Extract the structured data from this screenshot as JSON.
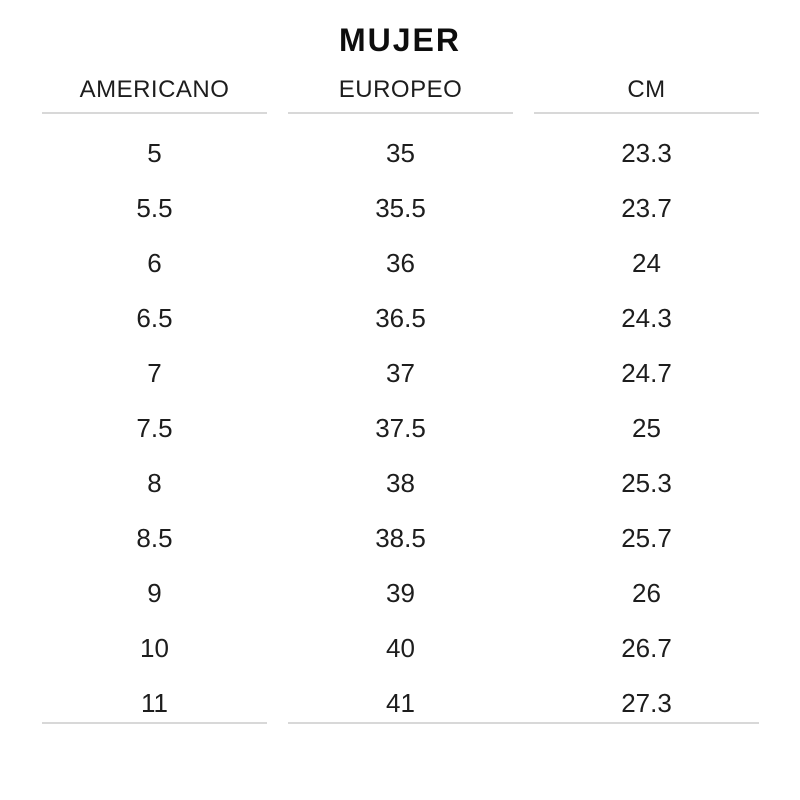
{
  "title": "MUJER",
  "chart_data": {
    "type": "table",
    "title": "MUJER",
    "columns": [
      "AMERICANO",
      "EUROPEO",
      "CM"
    ],
    "rows": [
      [
        "5",
        "35",
        "23.3"
      ],
      [
        "5.5",
        "35.5",
        "23.7"
      ],
      [
        "6",
        "36",
        "24"
      ],
      [
        "6.5",
        "36.5",
        "24.3"
      ],
      [
        "7",
        "37",
        "24.7"
      ],
      [
        "7.5",
        "37.5",
        "25"
      ],
      [
        "8",
        "38",
        "25.3"
      ],
      [
        "8.5",
        "38.5",
        "25.7"
      ],
      [
        "9",
        "39",
        "26"
      ],
      [
        "10",
        "40",
        "26.7"
      ],
      [
        "11",
        "41",
        "27.3"
      ]
    ]
  },
  "colors": {
    "background": "#ffffff",
    "text": "#1d1d1d",
    "title_text": "#0d0d0d",
    "line": "#d8d8d8"
  }
}
